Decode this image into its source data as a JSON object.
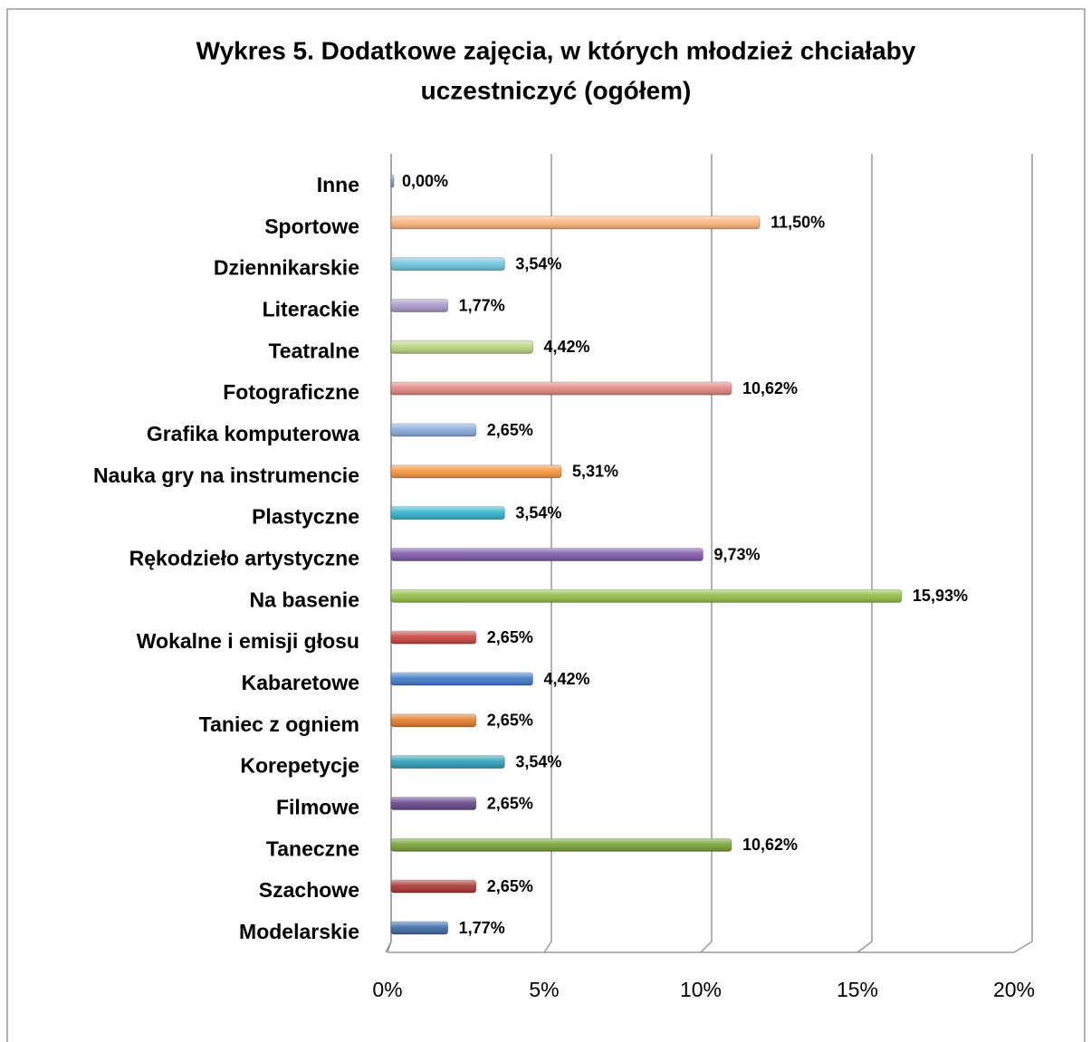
{
  "chart_data": {
    "type": "bar",
    "orientation": "horizontal",
    "title": [
      "Wykres 5. Dodatkowe zajęcia, w których młodzież chciałaby",
      "uczestniczyć (ogółem)"
    ],
    "categories": [
      "Inne",
      "Sportowe",
      "Dziennikarskie",
      "Literackie",
      "Teatralne",
      "Fotograficzne",
      "Grafika komputerowa",
      "Nauka gry na instrumencie",
      "Plastyczne",
      "Rękodzieło artystyczne",
      "Na basenie",
      "Wokalne i emisji głosu",
      "Kabaretowe",
      "Taniec z ogniem",
      "Korepetycje",
      "Filmowe",
      "Taneczne",
      "Szachowe",
      "Modelarskie"
    ],
    "values": [
      0,
      11.5,
      3.54,
      1.77,
      4.42,
      10.62,
      2.65,
      5.31,
      3.54,
      9.73,
      15.93,
      2.65,
      4.42,
      2.65,
      3.54,
      2.65,
      10.62,
      2.65,
      1.77
    ],
    "value_labels": [
      "0,00%",
      "11,50%",
      "3,54%",
      "1,77%",
      "4,42%",
      "10,62%",
      "2,65%",
      "5,31%",
      "3,54%",
      "9,73%",
      "15,93%",
      "2,65%",
      "4,42%",
      "2,65%",
      "3,54%",
      "2,65%",
      "10,62%",
      "2,65%",
      "1,77%"
    ],
    "colors": [
      "#7f9cc4",
      "#fab27a",
      "#6cc3dc",
      "#a896c8",
      "#b8d47e",
      "#e2837f",
      "#87a9da",
      "#f7923a",
      "#2fb1cc",
      "#7d55a8",
      "#93be45",
      "#c8403c",
      "#3f78c4",
      "#e07a26",
      "#2a9cb6",
      "#634487",
      "#77a032",
      "#a63331",
      "#3b67a4"
    ],
    "xlim": [
      0,
      20
    ],
    "xticks": [
      {
        "value": 0,
        "label": "0%"
      },
      {
        "value": 5,
        "label": "5%"
      },
      {
        "value": 10,
        "label": "10%"
      },
      {
        "value": 15,
        "label": "15%"
      },
      {
        "value": 20,
        "label": "20%"
      }
    ],
    "grid": true
  }
}
